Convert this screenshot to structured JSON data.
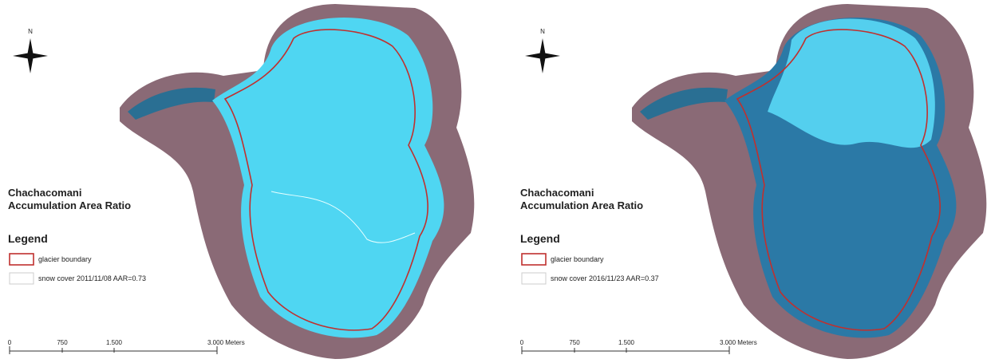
{
  "panels": [
    {
      "north": "N",
      "title": [
        "Chachacomani",
        "Accumulation Area Ratio"
      ],
      "legend_title": "Legend",
      "legend": [
        "glacier boundary",
        "snow cover 2011/11/08 AAR=0.73"
      ],
      "scale": [
        "0",
        "750",
        "1.500",
        "3.000 Meters"
      ]
    },
    {
      "north": "N",
      "title": [
        "Chachacomani",
        "Accumulation Area Ratio"
      ],
      "legend_title": "Legend",
      "legend": [
        "glacier boundary",
        "snow cover 2016/11/23 AAR=0.37"
      ],
      "scale": [
        "0",
        "750",
        "1.500",
        "3.000 Meters"
      ]
    }
  ]
}
